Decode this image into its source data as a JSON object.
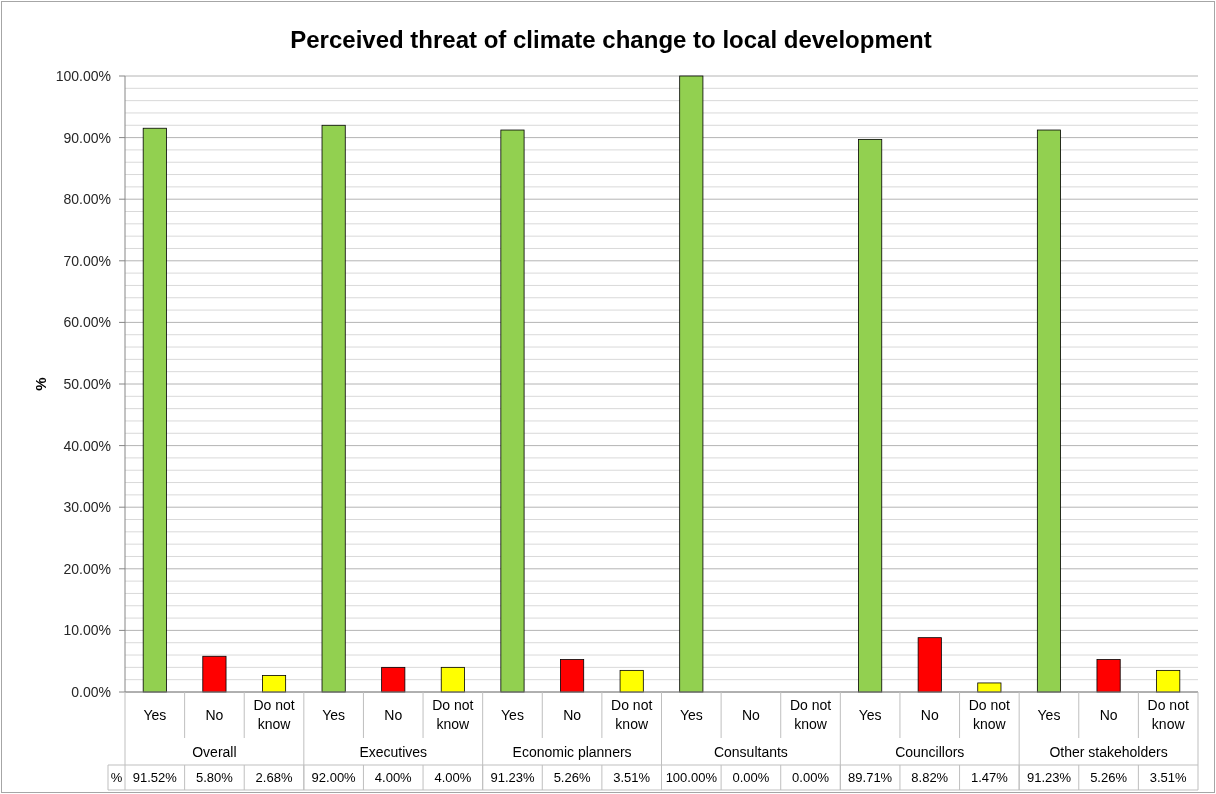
{
  "chart_data": {
    "type": "bar",
    "title": "Perceived threat of climate change to local development",
    "ylabel": "%",
    "categories": [
      "Yes",
      "No",
      "Do not know",
      "Yes",
      "No",
      "Do not know",
      "Yes",
      "No",
      "Do not know",
      "Yes",
      "No",
      "Do not know",
      "Yes",
      "No",
      "Do not know",
      "Yes",
      "No",
      "Do not know"
    ],
    "series": [
      {
        "name": "%",
        "colors": [
          "#92d050",
          "#ff0000",
          "#ffff00",
          "#92d050",
          "#ff0000",
          "#ffff00",
          "#92d050",
          "#ff0000",
          "#ffff00",
          "#92d050",
          "#ff0000",
          "#ffff00",
          "#92d050",
          "#ff0000",
          "#ffff00",
          "#92d050",
          "#ff0000",
          "#ffff00"
        ],
        "values": [
          91.52,
          5.8,
          2.68,
          92.0,
          4.0,
          4.0,
          91.23,
          5.26,
          3.51,
          100.0,
          0.0,
          0.0,
          89.71,
          8.82,
          1.47,
          91.23,
          5.26,
          3.51
        ],
        "value_labels": [
          "91.52%",
          "5.80%",
          "2.68%",
          "92.00%",
          "4.00%",
          "4.00%",
          "91.23%",
          "5.26%",
          "3.51%",
          "100.00%",
          "0.00%",
          "0.00%",
          "89.71%",
          "8.82%",
          "1.47%",
          "91.23%",
          "5.26%",
          "3.51%"
        ]
      }
    ],
    "ylim": [
      0,
      100
    ],
    "yticks": [
      {
        "value": 0,
        "label": "0.00%"
      },
      {
        "value": 2,
        "label": null
      },
      {
        "value": 4,
        "label": null
      },
      {
        "value": 6,
        "label": null
      },
      {
        "value": 8,
        "label": null
      },
      {
        "value": 10,
        "label": "10.00%"
      },
      {
        "value": 12,
        "label": null
      },
      {
        "value": 14,
        "label": null
      },
      {
        "value": 16,
        "label": null
      },
      {
        "value": 18,
        "label": null
      },
      {
        "value": 20,
        "label": "20.00%"
      },
      {
        "value": 22,
        "label": null
      },
      {
        "value": 24,
        "label": null
      },
      {
        "value": 26,
        "label": null
      },
      {
        "value": 28,
        "label": null
      },
      {
        "value": 30,
        "label": "30.00%"
      },
      {
        "value": 32,
        "label": null
      },
      {
        "value": 34,
        "label": null
      },
      {
        "value": 36,
        "label": null
      },
      {
        "value": 38,
        "label": null
      },
      {
        "value": 40,
        "label": "40.00%"
      },
      {
        "value": 42,
        "label": null
      },
      {
        "value": 44,
        "label": null
      },
      {
        "value": 46,
        "label": null
      },
      {
        "value": 48,
        "label": null
      },
      {
        "value": 50,
        "label": "50.00%"
      },
      {
        "value": 52,
        "label": null
      },
      {
        "value": 54,
        "label": null
      },
      {
        "value": 56,
        "label": null
      },
      {
        "value": 58,
        "label": null
      },
      {
        "value": 60,
        "label": "60.00%"
      },
      {
        "value": 62,
        "label": null
      },
      {
        "value": 64,
        "label": null
      },
      {
        "value": 66,
        "label": null
      },
      {
        "value": 68,
        "label": null
      },
      {
        "value": 70,
        "label": "70.00%"
      },
      {
        "value": 72,
        "label": null
      },
      {
        "value": 74,
        "label": null
      },
      {
        "value": 76,
        "label": null
      },
      {
        "value": 78,
        "label": null
      },
      {
        "value": 80,
        "label": "80.00%"
      },
      {
        "value": 82,
        "label": null
      },
      {
        "value": 84,
        "label": null
      },
      {
        "value": 86,
        "label": null
      },
      {
        "value": 88,
        "label": null
      },
      {
        "value": 90,
        "label": "90.00%"
      },
      {
        "value": 92,
        "label": null
      },
      {
        "value": 94,
        "label": null
      },
      {
        "value": 96,
        "label": null
      },
      {
        "value": 98,
        "label": null
      },
      {
        "value": 100,
        "label": "100.00%"
      }
    ],
    "grid": true,
    "annotations": [
      "Overall",
      "Executives",
      "Economic planners",
      "Consultants",
      "Councillors",
      "Other stakeholders"
    ]
  }
}
